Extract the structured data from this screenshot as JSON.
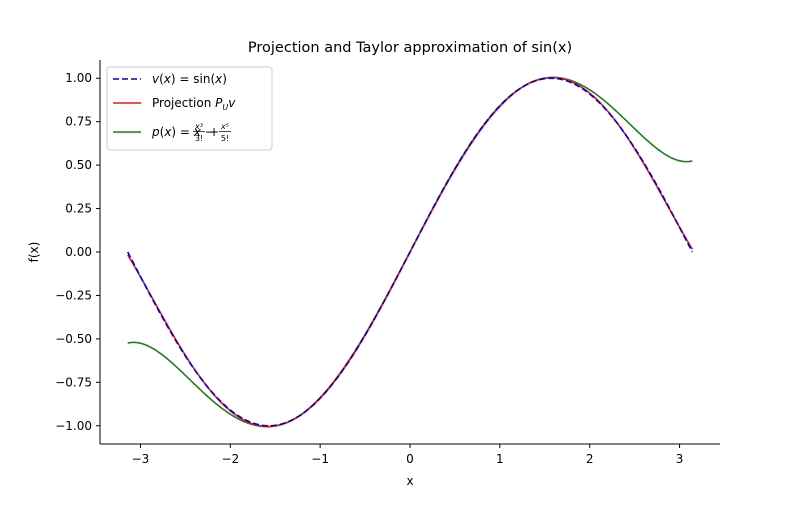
{
  "chart_data": {
    "type": "line",
    "title": "Projection and Taylor approximation of sin(x)",
    "xlabel": "x",
    "ylabel": "f(x)",
    "xlim": [
      -3.45,
      3.45
    ],
    "ylim": [
      -1.105,
      1.105
    ],
    "x_domain": [
      -3.14159,
      3.14159
    ],
    "x_ticks": [
      -3,
      -2,
      -1,
      0,
      1,
      2,
      3
    ],
    "x_tick_labels": [
      "−3",
      "−2",
      "−1",
      "0",
      "1",
      "2",
      "3"
    ],
    "y_ticks": [
      1.0,
      0.75,
      0.5,
      0.25,
      0.0,
      -0.25,
      -0.5,
      -0.75,
      -1.0
    ],
    "y_tick_labels": [
      "1.00",
      "0.75",
      "0.50",
      "0.25",
      "0.00",
      "−0.25",
      "−0.50",
      "−0.75",
      "−1.00"
    ],
    "grid": false,
    "legend_position": "top-left",
    "series": [
      {
        "name": "v(x) = sin(x)",
        "function": "sin",
        "color": "#0000cc",
        "style": "dashed"
      },
      {
        "name": "Projection P_U v",
        "function": "projection_poly5",
        "coefficients": {
          "x1": 0.987862,
          "x3": -0.155271,
          "x5": 0.00564312
        },
        "color": "#e8141c",
        "style": "solid"
      },
      {
        "name": "p(x) = x − x³/3! + x⁵/5!",
        "function": "taylor5",
        "color": "#1f7f1f",
        "style": "solid"
      }
    ]
  }
}
